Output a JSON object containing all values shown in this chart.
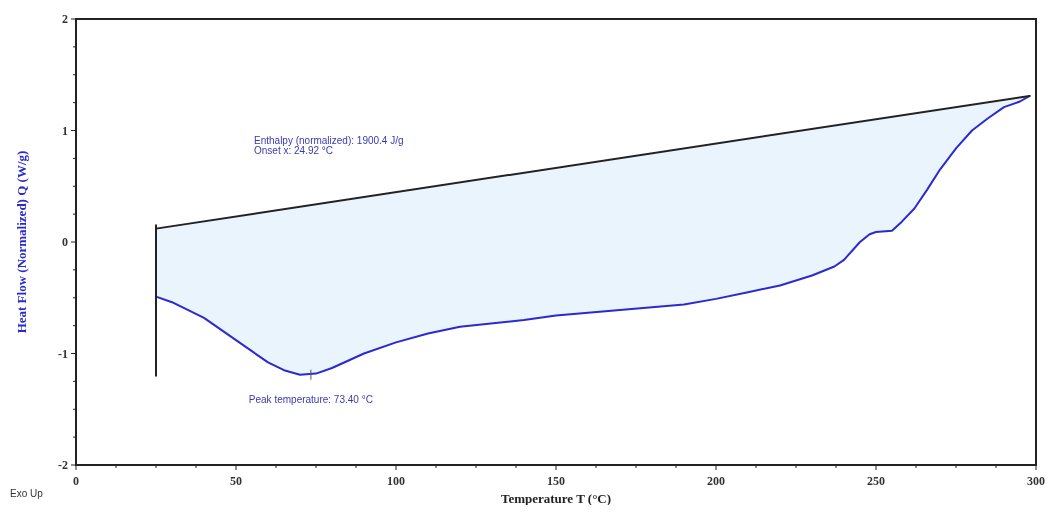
{
  "chart_data": {
    "type": "line",
    "xlabel": "Temperature T (°C)",
    "ylabel": "Heat Flow (Normalized) Q (W/g)",
    "xlim": [
      0,
      300
    ],
    "xticks": [
      0,
      {
        "value": 12.5,
        "label": null
      },
      {
        "value": 25,
        "label": null
      },
      {
        "value": 37.5,
        "label": null
      },
      50,
      {
        "value": 62.5,
        "label": null
      },
      {
        "value": 75,
        "label": null
      },
      {
        "value": 87.5,
        "label": null
      },
      100,
      {
        "value": 112.5,
        "label": null
      },
      {
        "value": 125,
        "label": null
      },
      {
        "value": 137.5,
        "label": null
      },
      150,
      {
        "value": 162.5,
        "label": null
      },
      {
        "value": 175,
        "label": null
      },
      {
        "value": 187.5,
        "label": null
      },
      200,
      {
        "value": 212.5,
        "label": null
      },
      {
        "value": 225,
        "label": null
      },
      {
        "value": 237.5,
        "label": null
      },
      250,
      {
        "value": 262.5,
        "label": null
      },
      {
        "value": 275,
        "label": null
      },
      {
        "value": 287.5,
        "label": null
      },
      300
    ],
    "ylim": [
      -2,
      2
    ],
    "yticks": [
      -2,
      {
        "value": -1.75,
        "label": null
      },
      {
        "value": -1.5,
        "label": null
      },
      {
        "value": -1.25,
        "label": null
      },
      -1,
      {
        "value": -0.75,
        "label": null
      },
      {
        "value": -0.5,
        "label": null
      },
      {
        "value": -0.25,
        "label": null
      },
      0,
      {
        "value": 0.25,
        "label": null
      },
      {
        "value": 0.5,
        "label": null
      },
      {
        "value": 0.75,
        "label": null
      },
      1,
      {
        "value": 1.25,
        "label": null
      },
      {
        "value": 1.5,
        "label": null
      },
      {
        "value": 1.75,
        "label": null
      },
      2
    ],
    "series": [
      {
        "color": "#2a2ad0",
        "x": [
          25,
          30,
          40,
          50,
          60,
          65,
          70,
          75,
          80,
          90,
          100,
          110,
          120,
          140,
          150,
          170,
          190,
          200,
          210,
          220,
          230,
          237,
          240,
          245,
          248,
          250,
          255,
          258,
          262,
          266,
          270,
          275,
          280,
          285,
          290,
          295,
          298
        ],
        "values": [
          -0.49,
          -0.54,
          -0.68,
          -0.88,
          -1.08,
          -1.15,
          -1.19,
          -1.18,
          -1.13,
          -1.0,
          -0.9,
          -0.82,
          -0.76,
          -0.7,
          -0.66,
          -0.61,
          -0.56,
          -0.51,
          -0.45,
          -0.39,
          -0.3,
          -0.22,
          -0.16,
          0.0,
          0.07,
          0.09,
          0.1,
          0.18,
          0.3,
          0.47,
          0.65,
          0.84,
          1.0,
          1.11,
          1.21,
          1.26,
          1.31
        ],
        "lower": [
          -0.49,
          -0.54,
          -0.68,
          -0.88,
          -1.08,
          -1.15,
          -1.19,
          -1.18,
          -1.13,
          -1.0,
          -0.9,
          -0.82,
          -0.76,
          -0.7,
          -0.66,
          -0.61,
          -0.56,
          -0.51,
          -0.45,
          -0.39,
          -0.3,
          -0.22,
          -0.16,
          0.0,
          0.07,
          0.09,
          0.1,
          0.18,
          0.3,
          0.47,
          0.65,
          0.84,
          1.0,
          1.11,
          1.21,
          1.26,
          1.31
        ],
        "upper": [
          0.12,
          0.14,
          0.19,
          0.23,
          0.27,
          0.29,
          0.32,
          0.34,
          0.36,
          0.4,
          0.45,
          0.49,
          0.53,
          0.62,
          0.66,
          0.75,
          0.84,
          0.88,
          0.93,
          0.97,
          1.01,
          1.04,
          1.06,
          1.08,
          1.09,
          1.1,
          1.12,
          1.14,
          1.15,
          1.17,
          1.19,
          1.21,
          1.23,
          1.25,
          1.28,
          1.3,
          1.31
        ]
      },
      {
        "color": "#222222",
        "x": [
          25,
          298
        ],
        "values": [
          0.12,
          1.31
        ]
      },
      {
        "color": "#222222",
        "x": [
          25,
          25
        ],
        "values": [
          0.15,
          -1.2
        ]
      }
    ],
    "annotations": [
      "Enthalpy (normalized): 1900.4 J/g",
      "Onset x: 24.92 °C",
      {
        "text": "Peak temperature: 73.40 °C",
        "x": 73.4,
        "y": -1.19
      },
      "Exo Up"
    ]
  }
}
